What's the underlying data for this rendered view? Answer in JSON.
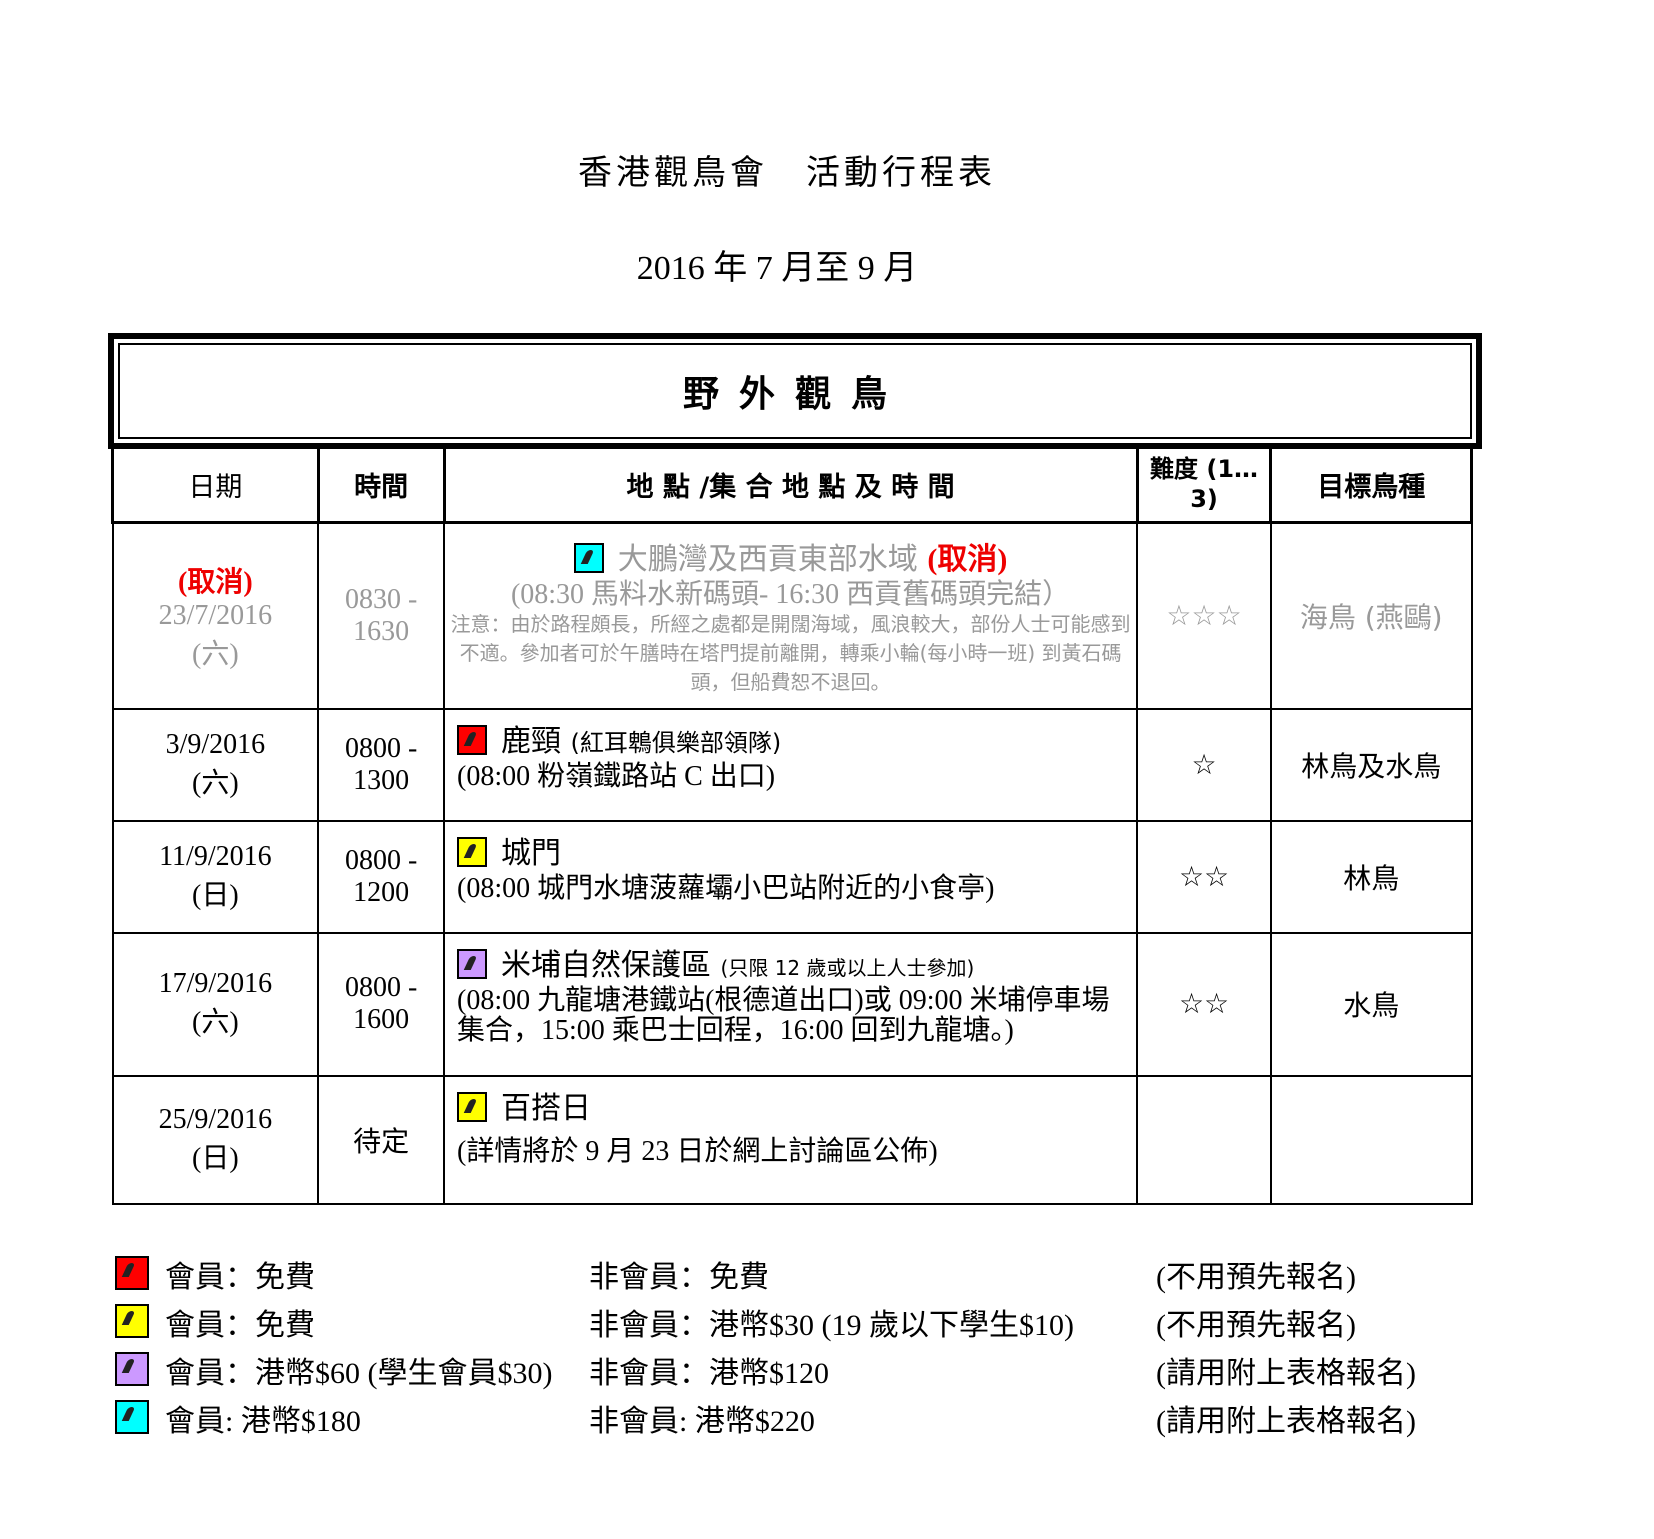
{
  "title": "香港觀鳥會　活動行程表",
  "subtitle": "2016 年 7 月至 9 月",
  "section": "野外觀鳥",
  "headers": {
    "date": "日期",
    "time": "時間",
    "location": "地 點 /集 合 地 點 及 時 間",
    "difficulty": "難度 (1…3)",
    "target": "目標鳥種"
  },
  "colors": {
    "red": "#ff0000",
    "yellow": "#ffff00",
    "purple": "#cc99ff",
    "cyan": "#00ffff"
  },
  "rows": [
    {
      "status": "(取消)",
      "date": "23/7/2016",
      "day": "(六)",
      "time1": "0830 -",
      "time2": "1630",
      "icon_color": "cyan",
      "place": "大鵬灣及西貢東部水域",
      "place_status": "(取消)",
      "meeting": "(08:30 馬料水新碼頭- 16:30 西貢舊碼頭完結）",
      "note": "注意：由於路程頗長，所經之處都是開闊海域，風浪較大，部份人士可能感到不適。參加者可於午膳時在塔門提前離開，轉乘小輪(每小時一班) 到黃石碼頭，但船費恕不退回。",
      "difficulty": "☆☆☆",
      "target": "海鳥 (燕鷗)"
    },
    {
      "date": "3/9/2016",
      "day": "(六)",
      "time1": "0800 -",
      "time2": "1300",
      "icon_color": "red",
      "place": "鹿頸",
      "place_note": "(紅耳鵯俱樂部領隊)",
      "meeting": "(08:00 粉嶺鐵路站 C 出口)",
      "difficulty": "☆",
      "target": "林鳥及水鳥"
    },
    {
      "date": "11/9/2016",
      "day": "(日)",
      "time1": "0800 -",
      "time2": "1200",
      "icon_color": "yellow",
      "place": "城門",
      "meeting": "(08:00 城門水塘菠蘿壩小巴站附近的小食亭)",
      "difficulty": "☆☆",
      "target": "林鳥"
    },
    {
      "date": "17/9/2016",
      "day": "(六)",
      "time1": "0800 -",
      "time2": "1600",
      "icon_color": "purple",
      "place": "米埔自然保護區",
      "place_note": "(只限 12 歲或以上人士參加)",
      "meeting": "(08:00 九龍塘港鐵站(根德道出口)或 09:00  米埔停車場集合，15:00  乘巴士回程，16:00  回到九龍塘。)",
      "difficulty": "☆☆",
      "target": "水鳥"
    },
    {
      "date": "25/9/2016",
      "day": "(日)",
      "time1": "待定",
      "time2": "",
      "icon_color": "yellow",
      "place": "百搭日",
      "meeting": "(詳情將於 9 月 23 日於網上討論區公佈)",
      "difficulty": "",
      "target": ""
    }
  ],
  "legend": [
    {
      "color": "red",
      "member": "會員：免費",
      "nonmember": "非會員：免費",
      "note": "(不用預先報名)"
    },
    {
      "color": "yellow",
      "member": "會員：免費",
      "nonmember": "非會員：港幣$30 (19 歲以下學生$10)",
      "note": "(不用預先報名)"
    },
    {
      "color": "purple",
      "member": "會員：港幣$60 (學生會員$30)",
      "nonmember": "非會員：港幣$120",
      "note": "(請用附上表格報名)"
    },
    {
      "color": "cyan",
      "member": "會員:  港幣$180",
      "nonmember": "非會員:  港幣$220",
      "note": "(請用附上表格報名)"
    }
  ]
}
